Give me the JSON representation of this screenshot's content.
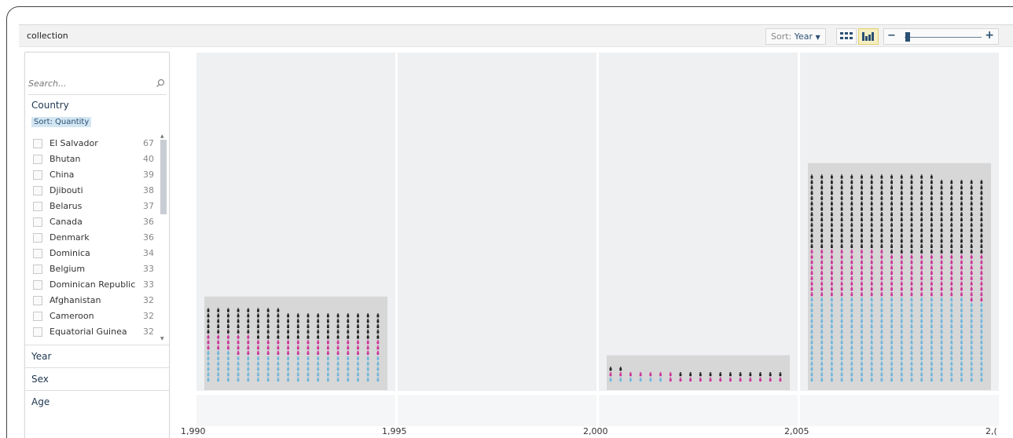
{
  "window": {
    "title": "collection"
  },
  "toolbar": {
    "sort_label": "Sort:",
    "sort_value": "Year",
    "grid_view_icon": "grid-icon",
    "bar_view_icon": "histogram-icon",
    "zoom_minus": "−",
    "zoom_plus": "+",
    "zoom_level": 0.03
  },
  "sidebar": {
    "search_placeholder": "Search...",
    "search_icon": "search-icon",
    "facets": [
      {
        "label": "Country"
      },
      {
        "label": "Year"
      },
      {
        "label": "Sex"
      },
      {
        "label": "Age"
      }
    ],
    "sort_label": "Sort: Quantity",
    "country_items": [
      {
        "name": "El Salvador",
        "count": "67"
      },
      {
        "name": "Bhutan",
        "count": "40"
      },
      {
        "name": "China",
        "count": "39"
      },
      {
        "name": "Djibouti",
        "count": "38"
      },
      {
        "name": "Belarus",
        "count": "37"
      },
      {
        "name": "Canada",
        "count": "36"
      },
      {
        "name": "Denmark",
        "count": "36"
      },
      {
        "name": "Dominica",
        "count": "34"
      },
      {
        "name": "Belgium",
        "count": "33"
      },
      {
        "name": "Dominican Republic",
        "count": "33"
      },
      {
        "name": "Afghanistan",
        "count": "32"
      },
      {
        "name": "Cameroon",
        "count": "32"
      },
      {
        "name": "Equatorial Guinea",
        "count": "32"
      }
    ]
  },
  "axis": {
    "tick_labels": [
      "1,990",
      "1,995",
      "2,000",
      "2,005",
      "2,("
    ]
  },
  "colors": {
    "group_a": "#222222",
    "group_b": "#cc3399",
    "group_c": "#6fb6dc",
    "column_bg": "#eef0f2",
    "stack_bg": "#d7d7d7"
  },
  "bins": [
    {
      "start": "1,990",
      "group_a": 93,
      "group_b": 56,
      "group_c": 93
    },
    {
      "start": "1,995",
      "group_a": 0,
      "group_b": 0,
      "group_c": 0
    },
    {
      "start": "2,000",
      "group_a": 13,
      "group_b": 19,
      "group_c": 6
    },
    {
      "start": "2,005",
      "group_a": 257,
      "group_b": 154,
      "group_c": 286
    }
  ]
}
